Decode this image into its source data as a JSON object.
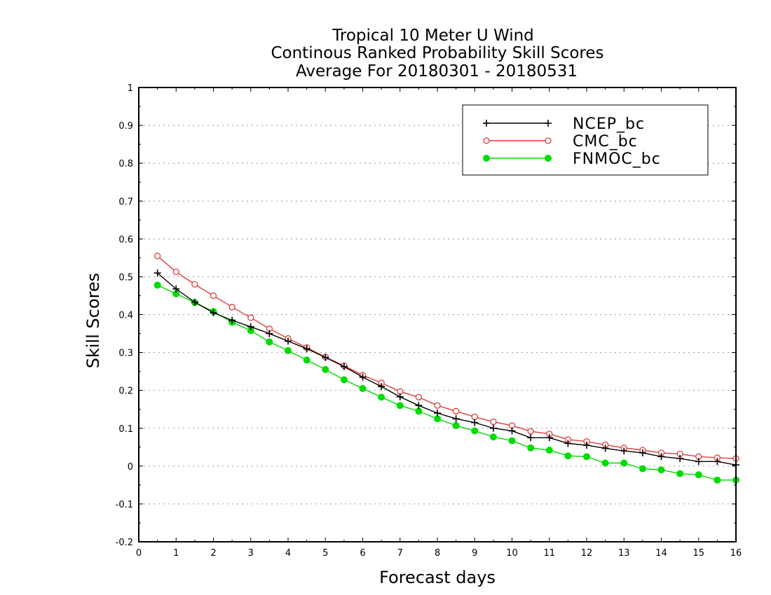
{
  "chart_data": {
    "type": "line",
    "title": [
      "Tropical 10 Meter U Wind",
      "Continous Ranked Probability Skill Scores",
      "Average For 20180301 - 20180531"
    ],
    "xlabel": "Forecast days",
    "ylabel": "Skill Scores",
    "xlim": [
      0,
      16
    ],
    "ylim": [
      -0.2,
      1
    ],
    "xticks": [
      "0",
      "1",
      "2",
      "3",
      "4",
      "5",
      "6",
      "7",
      "8",
      "9",
      "10",
      "11",
      "12",
      "13",
      "14",
      "15",
      "16"
    ],
    "yticks": [
      "-0.2",
      "-0.1",
      "0",
      "0.1",
      "0.2",
      "0.3",
      "0.4",
      "0.5",
      "0.6",
      "0.7",
      "0.8",
      "0.9",
      "1"
    ],
    "grid": "horizontal dotted",
    "legend_position": "top-right",
    "x": [
      0.5,
      1,
      1.5,
      2,
      2.5,
      3,
      3.5,
      4,
      4.5,
      5,
      5.5,
      6,
      6.5,
      7,
      7.5,
      8,
      8.5,
      9,
      9.5,
      10,
      10.5,
      11,
      11.5,
      12,
      12.5,
      13,
      13.5,
      14,
      14.5,
      15,
      15.5,
      16
    ],
    "series": [
      {
        "name": "NCEP_bc",
        "color": "#000000",
        "marker": "plus",
        "values": [
          0.51,
          0.468,
          0.433,
          0.405,
          0.385,
          0.368,
          0.35,
          0.33,
          0.31,
          0.287,
          0.263,
          0.235,
          0.21,
          0.183,
          0.16,
          0.14,
          0.125,
          0.115,
          0.1,
          0.093,
          0.075,
          0.075,
          0.06,
          0.055,
          0.047,
          0.04,
          0.035,
          0.025,
          0.02,
          0.012,
          0.012,
          0.003
        ]
      },
      {
        "name": "CMC_bc",
        "color": "#e03c3c",
        "marker": "open-circle",
        "values": [
          0.555,
          0.513,
          0.48,
          0.45,
          0.42,
          0.392,
          0.363,
          0.337,
          0.313,
          0.288,
          0.265,
          0.24,
          0.22,
          0.197,
          0.182,
          0.16,
          0.145,
          0.13,
          0.117,
          0.107,
          0.092,
          0.085,
          0.07,
          0.065,
          0.056,
          0.048,
          0.042,
          0.035,
          0.032,
          0.025,
          0.022,
          0.02
        ]
      },
      {
        "name": "FNMOC_bc",
        "color": "#00dc00",
        "marker": "filled-circle",
        "values": [
          0.478,
          0.455,
          0.432,
          0.408,
          0.38,
          0.358,
          0.328,
          0.305,
          0.28,
          0.255,
          0.228,
          0.205,
          0.182,
          0.16,
          0.145,
          0.125,
          0.107,
          0.093,
          0.077,
          0.067,
          0.048,
          0.042,
          0.027,
          0.025,
          0.008,
          0.008,
          -0.007,
          -0.01,
          -0.02,
          -0.023,
          -0.037,
          -0.037
        ]
      }
    ]
  }
}
